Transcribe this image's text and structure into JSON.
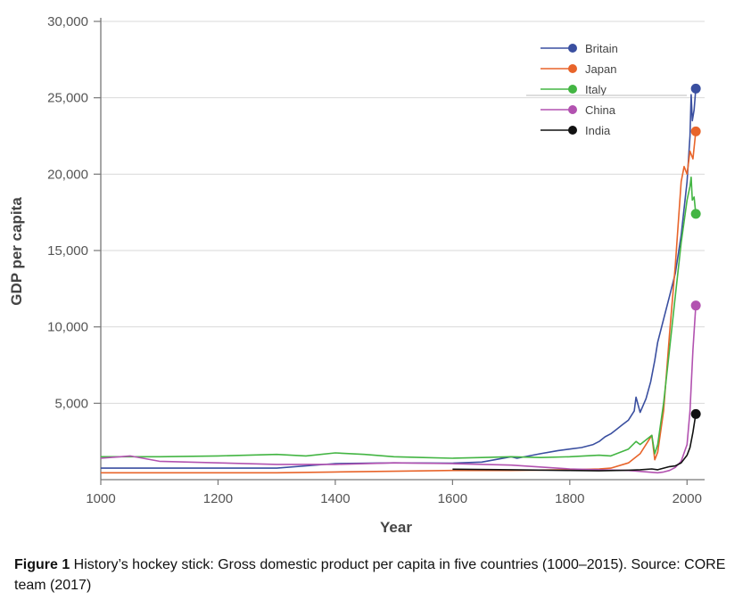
{
  "chart_data": {
    "type": "line",
    "xlabel": "Year",
    "ylabel": "GDP per capita",
    "xlim": [
      1000,
      2030
    ],
    "ylim": [
      0,
      30000
    ],
    "x_ticks": [
      1000,
      1200,
      1400,
      1600,
      1800,
      2000
    ],
    "x_tick_labels": [
      "1000",
      "1200",
      "1400",
      "1600",
      "1800",
      "2000"
    ],
    "y_ticks": [
      5000,
      10000,
      15000,
      20000,
      25000,
      30000
    ],
    "y_tick_labels": [
      "5,000",
      "10,000",
      "15,000",
      "20,000",
      "25,000",
      "30,000"
    ],
    "grid": "horizontal",
    "legend_position": "top-right",
    "series": [
      {
        "name": "Britain",
        "color": "#3a4fa0",
        "x": [
          1000,
          1100,
          1200,
          1300,
          1400,
          1500,
          1600,
          1650,
          1700,
          1710,
          1750,
          1780,
          1800,
          1820,
          1840,
          1850,
          1860,
          1870,
          1880,
          1890,
          1900,
          1910,
          1913,
          1920,
          1930,
          1938,
          1945,
          1950,
          1960,
          1970,
          1980,
          1990,
          2000,
          2005,
          2007,
          2009,
          2012,
          2015
        ],
        "y": [
          750,
          750,
          750,
          750,
          1050,
          1100,
          1080,
          1150,
          1500,
          1400,
          1700,
          1900,
          2000,
          2100,
          2300,
          2500,
          2800,
          3000,
          3300,
          3600,
          3900,
          4500,
          5400,
          4400,
          5300,
          6400,
          7800,
          9000,
          10500,
          12000,
          13500,
          16000,
          19500,
          22500,
          25200,
          23500,
          24200,
          25600
        ]
      },
      {
        "name": "Japan",
        "color": "#e8642a",
        "x": [
          1000,
          1100,
          1200,
          1300,
          1400,
          1500,
          1600,
          1700,
          1800,
          1850,
          1870,
          1900,
          1920,
          1940,
          1945,
          1950,
          1960,
          1970,
          1980,
          1990,
          1995,
          2000,
          2005,
          2010,
          2015
        ],
        "y": [
          450,
          450,
          450,
          450,
          500,
          550,
          600,
          600,
          650,
          700,
          750,
          1100,
          1700,
          2900,
          1300,
          1800,
          4500,
          9500,
          14000,
          19500,
          20500,
          20000,
          21500,
          21000,
          22800
        ]
      },
      {
        "name": "Italy",
        "color": "#43b543",
        "x": [
          1000,
          1100,
          1200,
          1300,
          1350,
          1400,
          1450,
          1500,
          1550,
          1600,
          1650,
          1700,
          1750,
          1800,
          1850,
          1870,
          1900,
          1913,
          1920,
          1940,
          1945,
          1950,
          1960,
          1970,
          1980,
          1990,
          2000,
          2005,
          2007,
          2009,
          2012,
          2015
        ],
        "y": [
          1500,
          1500,
          1550,
          1650,
          1550,
          1750,
          1650,
          1500,
          1450,
          1400,
          1450,
          1500,
          1450,
          1500,
          1600,
          1550,
          2000,
          2500,
          2300,
          2900,
          1700,
          2300,
          5000,
          8500,
          12000,
          15500,
          18300,
          19200,
          19800,
          18300,
          18500,
          17400
        ]
      },
      {
        "name": "China",
        "color": "#b252b0",
        "x": [
          1000,
          1050,
          1100,
          1200,
          1300,
          1400,
          1500,
          1600,
          1700,
          1800,
          1850,
          1900,
          1950,
          1960,
          1970,
          1980,
          1990,
          2000,
          2005,
          2010,
          2015
        ],
        "y": [
          1400,
          1550,
          1200,
          1100,
          1000,
          1000,
          1100,
          1050,
          950,
          700,
          650,
          600,
          450,
          500,
          600,
          800,
          1200,
          2300,
          4500,
          8500,
          11400
        ]
      },
      {
        "name": "India",
        "color": "#111111",
        "x": [
          1600,
          1700,
          1800,
          1850,
          1900,
          1920,
          1940,
          1950,
          1960,
          1970,
          1980,
          1990,
          2000,
          2005,
          2010,
          2015
        ],
        "y": [
          680,
          650,
          600,
          580,
          620,
          650,
          700,
          650,
          750,
          850,
          900,
          1100,
          1600,
          2100,
          3100,
          4300
        ]
      }
    ]
  },
  "caption": {
    "label": "Figure 1",
    "text": " History’s hockey stick: Gross domestic product per capita in five countries (1000–2015). Source: CORE team (2017)"
  }
}
